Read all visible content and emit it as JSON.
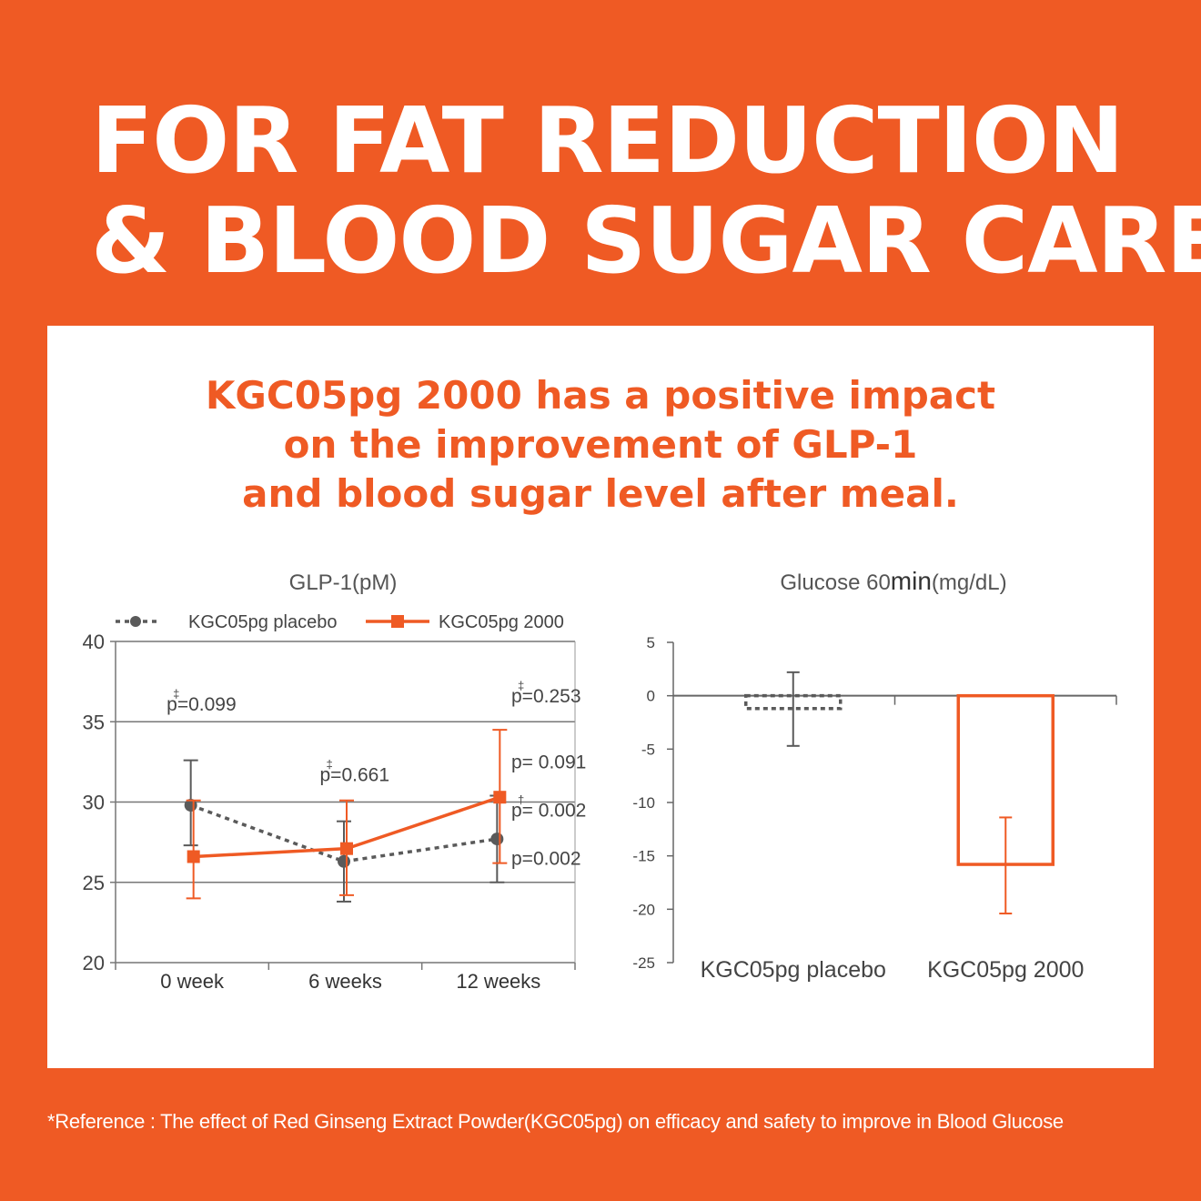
{
  "headline": {
    "line1": "FOR FAT REDUCTION",
    "line2": "& BLOOD SUGAR CARE",
    "asterisk": "*"
  },
  "subtitle": {
    "line1": "KGC05pg 2000 has a positive impact",
    "line2": "on the improvement of GLP-1",
    "line3": "and blood sugar level after meal."
  },
  "reference": "*Reference : The effect of Red Ginseng Extract Powder(KGC05pg) on efficacy and safety to improve in Blood Glucose",
  "colors": {
    "background": "#ef5a24",
    "accent": "#ef5a24",
    "placebo": "#5a5a5a",
    "panel": "#ffffff"
  },
  "chart_data": [
    {
      "type": "line",
      "title": "GLP-1(pM)",
      "categories": [
        "0 week",
        "6 weeks",
        "12 weeks"
      ],
      "ylim": [
        20,
        40
      ],
      "yticks": [
        20,
        25,
        30,
        35,
        40
      ],
      "grid": true,
      "legend": "top",
      "series": [
        {
          "name": "KGC05pg placebo",
          "style": "dotted-circle",
          "color": "#5a5a5a",
          "values": [
            29.8,
            26.3,
            27.7
          ],
          "err_low": [
            27.3,
            23.8,
            25.0
          ],
          "err_high": [
            32.6,
            28.8,
            30.4
          ]
        },
        {
          "name": "KGC05pg 2000",
          "style": "solid-square",
          "color": "#ef5a24",
          "values": [
            26.6,
            27.1,
            30.3
          ],
          "err_low": [
            24.0,
            24.2,
            26.2
          ],
          "err_high": [
            30.1,
            30.1,
            34.5
          ]
        }
      ],
      "annotations": [
        {
          "text": "p=0.099",
          "dagger": "‡",
          "category": 0,
          "y": 35.7
        },
        {
          "text": "p=0.661",
          "dagger": "‡",
          "category": 1,
          "y": 31.3
        },
        {
          "text": "p=0.253",
          "dagger": "‡",
          "category": 2,
          "y": 36.2
        },
        {
          "text": "p= 0.091",
          "dagger": "",
          "category": 2,
          "y": 32.1
        },
        {
          "text": "p= 0.002",
          "dagger": "†",
          "category": 2,
          "y": 29.1
        },
        {
          "text": "p=0.002",
          "dagger": "",
          "category": 2,
          "y": 26.1
        }
      ]
    },
    {
      "type": "bar",
      "title": "Glucose 60min(mg/dL)",
      "title_parts": [
        "Glucose 60",
        "min",
        "(mg/dL)"
      ],
      "categories": [
        "KGC05pg placebo",
        "KGC05pg 2000"
      ],
      "ylim": [
        -25,
        5
      ],
      "yticks": [
        5,
        0,
        -5,
        -10,
        -15,
        -20,
        -25
      ],
      "series": [
        {
          "values": [
            -1.2,
            -15.8
          ],
          "err_low": [
            -4.7,
            -20.4
          ],
          "err_high": [
            2.2,
            -11.4
          ],
          "colors": [
            "#5a5a5a",
            "#ef5a24"
          ],
          "styles": [
            "dashed",
            "solid"
          ]
        }
      ]
    }
  ]
}
